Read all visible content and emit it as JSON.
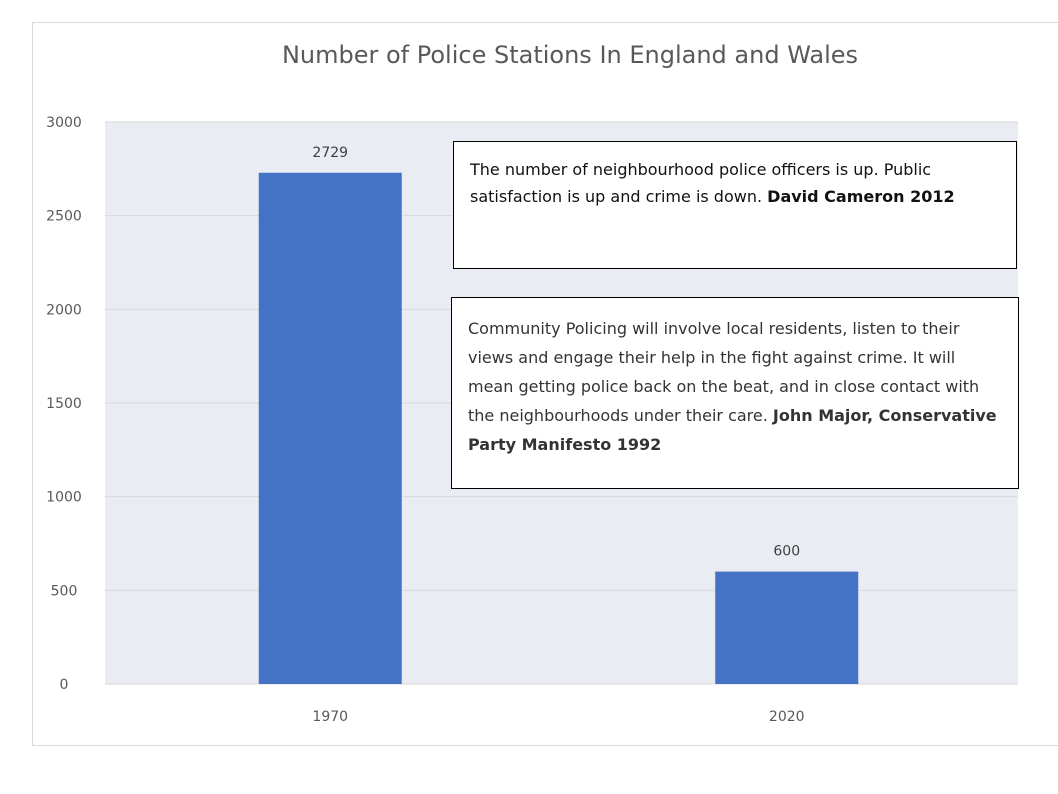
{
  "chart_data": {
    "type": "bar",
    "title": "Number of Police Stations In England and Wales",
    "categories": [
      "1970",
      "2020"
    ],
    "values": [
      2729,
      600
    ],
    "data_labels": [
      "2729",
      "600"
    ],
    "ylim": [
      0,
      3000
    ],
    "yticks": [
      0,
      500,
      1000,
      1500,
      2000,
      2500,
      3000
    ],
    "grid": true,
    "bar_color": "#4472C4",
    "plot_background": "#e9ecf2",
    "gridline_color": "#d9d9d9",
    "annotations": [
      {
        "text": "The number of neighbourhood  police officers is up. Public satisfaction is up and crime is down.",
        "attribution": "David Cameron 2012"
      },
      {
        "text": "Community Policing will involve local residents, listen to their views and engage their help in the fight against crime. It will mean getting police back on the beat, and in close contact with the neighbourhoods  under their care.",
        "attribution": "John Major,  Conservative Party Manifesto 1992"
      }
    ]
  }
}
